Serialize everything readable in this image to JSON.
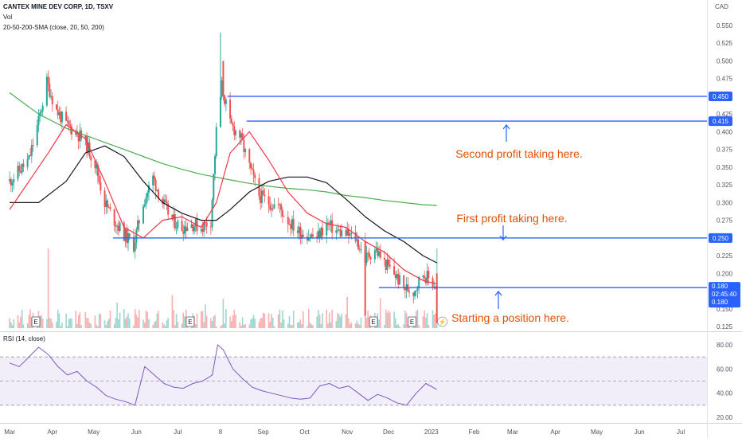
{
  "header": {
    "symbol": "CANTEX MINE DEV CORP, 1D, TSXV",
    "vol_label": "Vol",
    "sma_label": "20-50-200-SMA (close, 20, 50, 200)",
    "rsi_label": "RSI (14, close)",
    "currency": "CAD"
  },
  "colors": {
    "up": "#26a69a",
    "down": "#ef5350",
    "sma20": "#f23645",
    "sma50": "#131722",
    "sma200": "#4caf50",
    "level": "#2962ff",
    "annotation": "#e65100",
    "rsi": "#7e57c2"
  },
  "chart_data": [
    {
      "type": "candlestick",
      "title": "CANTEX MINE DEV CORP, 1D, TSXV",
      "currency": "CAD",
      "ylim": [
        0.125,
        0.575
      ],
      "y_ticks": [
        "0.550",
        "0.525",
        "0.500",
        "0.475",
        "0.450",
        "0.425",
        "0.400",
        "0.375",
        "0.350",
        "0.325",
        "0.300",
        "0.275",
        "0.250",
        "0.225",
        "0.200",
        "0.175",
        "0.150",
        "0.125"
      ],
      "x_ticks": [
        "Mar",
        "Apr",
        "May",
        "Jun",
        "Jul",
        "8",
        "Sep",
        "Oct",
        "Nov",
        "Dec",
        "2023",
        "Feb",
        "Mar",
        "Apr",
        "May",
        "Jun",
        "Jul"
      ],
      "price_path": [
        [
          "2022-03-01",
          0.33
        ],
        [
          "2022-03-08",
          0.345
        ],
        [
          "2022-03-15",
          0.36
        ],
        [
          "2022-03-22",
          0.415
        ],
        [
          "2022-03-28",
          0.47
        ],
        [
          "2022-04-04",
          0.43
        ],
        [
          "2022-04-11",
          0.41
        ],
        [
          "2022-04-18",
          0.4
        ],
        [
          "2022-04-25",
          0.385
        ],
        [
          "2022-05-02",
          0.355
        ],
        [
          "2022-05-09",
          0.3
        ],
        [
          "2022-05-16",
          0.275
        ],
        [
          "2022-05-23",
          0.255
        ],
        [
          "2022-05-30",
          0.24
        ],
        [
          "2022-06-06",
          0.3
        ],
        [
          "2022-06-13",
          0.335
        ],
        [
          "2022-06-20",
          0.3
        ],
        [
          "2022-06-27",
          0.275
        ],
        [
          "2022-07-04",
          0.265
        ],
        [
          "2022-07-11",
          0.27
        ],
        [
          "2022-07-18",
          0.265
        ],
        [
          "2022-07-25",
          0.275
        ],
        [
          "2022-07-29",
          0.4
        ],
        [
          "2022-08-02",
          0.465
        ],
        [
          "2022-08-08",
          0.41
        ],
        [
          "2022-08-15",
          0.395
        ],
        [
          "2022-08-22",
          0.35
        ],
        [
          "2022-08-29",
          0.31
        ],
        [
          "2022-09-05",
          0.3
        ],
        [
          "2022-09-12",
          0.295
        ],
        [
          "2022-09-19",
          0.275
        ],
        [
          "2022-09-26",
          0.26
        ],
        [
          "2022-10-03",
          0.255
        ],
        [
          "2022-10-10",
          0.25
        ],
        [
          "2022-10-17",
          0.27
        ],
        [
          "2022-10-24",
          0.26
        ],
        [
          "2022-10-31",
          0.255
        ],
        [
          "2022-11-07",
          0.25
        ],
        [
          "2022-11-14",
          0.22
        ],
        [
          "2022-11-21",
          0.235
        ],
        [
          "2022-11-28",
          0.215
        ],
        [
          "2022-12-05",
          0.2
        ],
        [
          "2022-12-12",
          0.18
        ],
        [
          "2022-12-19",
          0.175
        ],
        [
          "2022-12-26",
          0.2
        ],
        [
          "2023-01-03",
          0.185
        ],
        [
          "2023-01-05",
          0.18
        ]
      ],
      "sma20": [
        [
          "2022-03-01",
          0.29
        ],
        [
          "2022-03-15",
          0.33
        ],
        [
          "2022-03-29",
          0.37
        ],
        [
          "2022-04-11",
          0.41
        ],
        [
          "2022-04-25",
          0.39
        ],
        [
          "2022-05-09",
          0.33
        ],
        [
          "2022-05-23",
          0.265
        ],
        [
          "2022-06-06",
          0.25
        ],
        [
          "2022-06-20",
          0.275
        ],
        [
          "2022-07-04",
          0.28
        ],
        [
          "2022-07-18",
          0.265
        ],
        [
          "2022-07-29",
          0.3
        ],
        [
          "2022-08-08",
          0.37
        ],
        [
          "2022-08-22",
          0.4
        ],
        [
          "2022-09-05",
          0.36
        ],
        [
          "2022-09-19",
          0.315
        ],
        [
          "2022-10-03",
          0.285
        ],
        [
          "2022-10-17",
          0.27
        ],
        [
          "2022-10-31",
          0.265
        ],
        [
          "2022-11-14",
          0.245
        ],
        [
          "2022-11-28",
          0.23
        ],
        [
          "2022-12-12",
          0.205
        ],
        [
          "2022-12-26",
          0.19
        ],
        [
          "2023-01-05",
          0.185
        ]
      ],
      "sma50": [
        [
          "2022-03-01",
          0.3
        ],
        [
          "2022-03-22",
          0.3
        ],
        [
          "2022-04-11",
          0.33
        ],
        [
          "2022-04-25",
          0.37
        ],
        [
          "2022-05-09",
          0.38
        ],
        [
          "2022-05-23",
          0.365
        ],
        [
          "2022-06-06",
          0.33
        ],
        [
          "2022-06-20",
          0.3
        ],
        [
          "2022-07-04",
          0.285
        ],
        [
          "2022-07-18",
          0.275
        ],
        [
          "2022-07-29",
          0.275
        ],
        [
          "2022-08-08",
          0.29
        ],
        [
          "2022-08-22",
          0.315
        ],
        [
          "2022-09-05",
          0.33
        ],
        [
          "2022-09-19",
          0.336
        ],
        [
          "2022-10-03",
          0.336
        ],
        [
          "2022-10-17",
          0.328
        ],
        [
          "2022-10-31",
          0.305
        ],
        [
          "2022-11-14",
          0.28
        ],
        [
          "2022-11-28",
          0.26
        ],
        [
          "2022-12-12",
          0.245
        ],
        [
          "2022-12-26",
          0.225
        ],
        [
          "2023-01-05",
          0.215
        ]
      ],
      "sma200": [
        [
          "2022-03-01",
          0.455
        ],
        [
          "2022-03-22",
          0.425
        ],
        [
          "2022-04-11",
          0.405
        ],
        [
          "2022-04-25",
          0.395
        ],
        [
          "2022-05-09",
          0.385
        ],
        [
          "2022-05-23",
          0.375
        ],
        [
          "2022-06-06",
          0.365
        ],
        [
          "2022-06-20",
          0.355
        ],
        [
          "2022-07-04",
          0.347
        ],
        [
          "2022-07-18",
          0.34
        ],
        [
          "2022-08-08",
          0.332
        ],
        [
          "2022-08-22",
          0.327
        ],
        [
          "2022-09-05",
          0.323
        ],
        [
          "2022-09-19",
          0.32
        ],
        [
          "2022-10-03",
          0.318
        ],
        [
          "2022-10-17",
          0.315
        ],
        [
          "2022-10-31",
          0.31
        ],
        [
          "2022-11-14",
          0.307
        ],
        [
          "2022-11-28",
          0.303
        ],
        [
          "2022-12-12",
          0.3
        ],
        [
          "2022-12-26",
          0.297
        ],
        [
          "2023-01-05",
          0.296
        ]
      ],
      "volume_spikes": [
        [
          "2022-03-29",
          "high"
        ],
        [
          "2022-11-14",
          "high"
        ],
        [
          "2023-01-05",
          "high"
        ]
      ],
      "earnings_markers": [
        {
          "date": "2022-03-20",
          "label": "E"
        },
        {
          "date": "2022-07-10",
          "label": "E"
        },
        {
          "date": "2022-11-20",
          "label": "E"
        },
        {
          "date": "2022-12-18",
          "label": "E"
        }
      ],
      "horizontal_levels": [
        {
          "price": 0.45,
          "label": "0.450",
          "from": "2022-08-06"
        },
        {
          "price": 0.415,
          "label": "0.415",
          "from": "2022-08-20"
        },
        {
          "price": 0.25,
          "label": "0.250",
          "from": "2022-05-15"
        },
        {
          "price": 0.18,
          "label": "0.180",
          "from": "2022-11-24"
        }
      ],
      "last_price": {
        "value": "0.180",
        "time": "02:45:40",
        "label": "0.180"
      },
      "annotations": [
        {
          "text": "Second profit taking here.",
          "arrow": "up"
        },
        {
          "text": "First profit taking here.",
          "arrow": "down"
        },
        {
          "text": "Starting a position here.",
          "arrow": "up"
        }
      ]
    },
    {
      "type": "line",
      "title": "RSI (14, close)",
      "ylim": [
        15,
        90
      ],
      "y_ticks": [
        "80.00",
        "60.00",
        "40.00",
        "20.00"
      ],
      "bands": [
        70,
        50,
        30
      ],
      "points": [
        [
          "2022-03-01",
          65
        ],
        [
          "2022-03-08",
          62
        ],
        [
          "2022-03-15",
          70
        ],
        [
          "2022-03-22",
          78
        ],
        [
          "2022-03-29",
          72
        ],
        [
          "2022-04-05",
          62
        ],
        [
          "2022-04-12",
          55
        ],
        [
          "2022-04-19",
          58
        ],
        [
          "2022-04-26",
          50
        ],
        [
          "2022-05-03",
          45
        ],
        [
          "2022-05-10",
          38
        ],
        [
          "2022-05-17",
          35
        ],
        [
          "2022-05-24",
          33
        ],
        [
          "2022-05-31",
          30
        ],
        [
          "2022-06-07",
          62
        ],
        [
          "2022-06-14",
          55
        ],
        [
          "2022-06-21",
          48
        ],
        [
          "2022-06-28",
          45
        ],
        [
          "2022-07-05",
          44
        ],
        [
          "2022-07-12",
          48
        ],
        [
          "2022-07-19",
          50
        ],
        [
          "2022-07-26",
          55
        ],
        [
          "2022-07-30",
          80
        ],
        [
          "2022-08-03",
          76
        ],
        [
          "2022-08-10",
          60
        ],
        [
          "2022-08-17",
          52
        ],
        [
          "2022-08-24",
          45
        ],
        [
          "2022-08-31",
          42
        ],
        [
          "2022-09-07",
          40
        ],
        [
          "2022-09-14",
          38
        ],
        [
          "2022-09-21",
          36
        ],
        [
          "2022-09-28",
          35
        ],
        [
          "2022-10-05",
          36
        ],
        [
          "2022-10-12",
          46
        ],
        [
          "2022-10-19",
          48
        ],
        [
          "2022-10-26",
          44
        ],
        [
          "2022-11-02",
          46
        ],
        [
          "2022-11-09",
          40
        ],
        [
          "2022-11-16",
          34
        ],
        [
          "2022-11-23",
          39
        ],
        [
          "2022-11-30",
          36
        ],
        [
          "2022-12-07",
          32
        ],
        [
          "2022-12-14",
          30
        ],
        [
          "2022-12-21",
          40
        ],
        [
          "2022-12-28",
          48
        ],
        [
          "2023-01-05",
          43
        ]
      ]
    }
  ]
}
